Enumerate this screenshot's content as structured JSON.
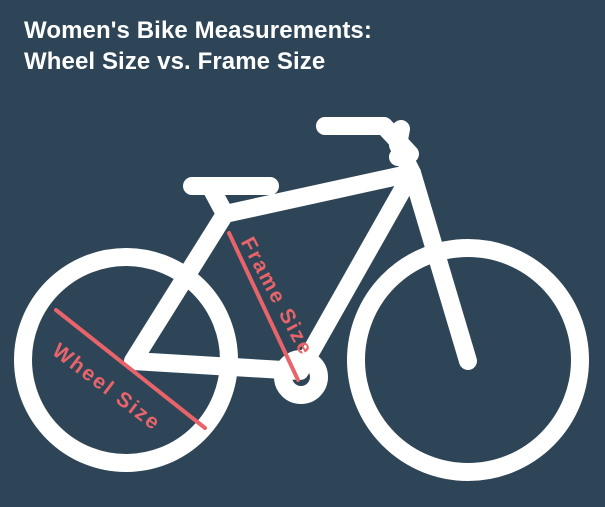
{
  "title": {
    "line1": "Women's Bike Measurements:",
    "line2": "Wheel Size vs. Frame Size"
  },
  "labels": {
    "wheel_size": "Wheel Size",
    "frame_size": "Frame Size"
  },
  "colors": {
    "background": "#2e4557",
    "bike": "#ffffff",
    "measure": "#e8646a"
  }
}
